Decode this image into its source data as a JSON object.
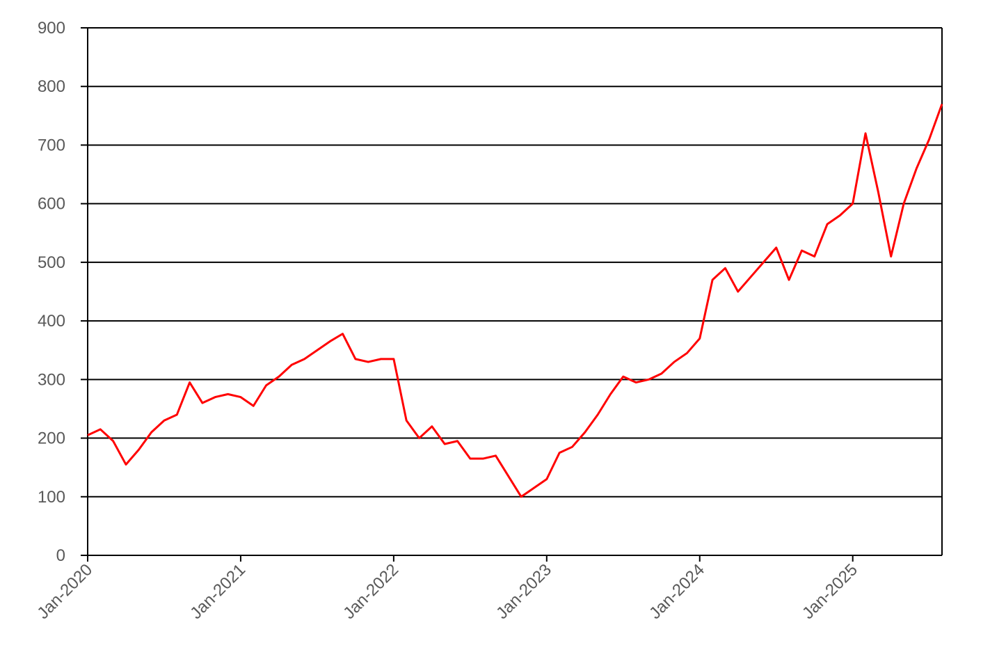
{
  "chart_data": {
    "type": "line",
    "x": [
      "2020-01",
      "2020-02",
      "2020-03",
      "2020-04",
      "2020-05",
      "2020-06",
      "2020-07",
      "2020-08",
      "2020-09",
      "2020-10",
      "2020-11",
      "2020-12",
      "2021-01",
      "2021-02",
      "2021-03",
      "2021-04",
      "2021-05",
      "2021-06",
      "2021-07",
      "2021-08",
      "2021-09",
      "2021-10",
      "2021-11",
      "2021-12",
      "2022-01",
      "2022-02",
      "2022-03",
      "2022-04",
      "2022-05",
      "2022-06",
      "2022-07",
      "2022-08",
      "2022-09",
      "2022-10",
      "2022-11",
      "2022-12",
      "2023-01",
      "2023-02",
      "2023-03",
      "2023-04",
      "2023-05",
      "2023-06",
      "2023-07",
      "2023-08",
      "2023-09",
      "2023-10",
      "2023-11",
      "2023-12",
      "2024-01",
      "2024-02",
      "2024-03",
      "2024-04",
      "2024-05",
      "2024-06",
      "2024-07",
      "2024-08",
      "2024-09",
      "2024-10",
      "2024-11",
      "2024-12",
      "2025-01",
      "2025-02",
      "2025-03",
      "2025-04",
      "2025-05",
      "2025-06",
      "2025-07",
      "2025-08"
    ],
    "series": [
      {
        "color": "#ff0000",
        "values": [
          205,
          215,
          195,
          155,
          180,
          210,
          230,
          240,
          295,
          260,
          270,
          275,
          270,
          255,
          290,
          305,
          325,
          335,
          350,
          365,
          378,
          335,
          330,
          335,
          335,
          230,
          200,
          220,
          190,
          195,
          165,
          165,
          170,
          135,
          100,
          115,
          130,
          175,
          185,
          210,
          240,
          275,
          305,
          295,
          300,
          310,
          330,
          345,
          370,
          470,
          490,
          450,
          475,
          500,
          525,
          470,
          520,
          510,
          565,
          580,
          600,
          720,
          620,
          510,
          600,
          660,
          710,
          770
        ]
      }
    ],
    "xlim": [
      "2020-01",
      "2025-08"
    ],
    "xticks": [
      {
        "value": "2020-01",
        "label": "Jan-2020"
      },
      {
        "value": "2021-01",
        "label": "Jan-2021"
      },
      {
        "value": "2022-01",
        "label": "Jan-2022"
      },
      {
        "value": "2023-01",
        "label": "Jan-2023"
      },
      {
        "value": "2024-01",
        "label": "Jan-2024"
      },
      {
        "value": "2025-01",
        "label": "Jan-2025"
      }
    ],
    "ylim": [
      0,
      900
    ],
    "yticks": [
      0,
      100,
      200,
      300,
      400,
      500,
      600,
      700,
      800,
      900
    ],
    "grid": true
  }
}
